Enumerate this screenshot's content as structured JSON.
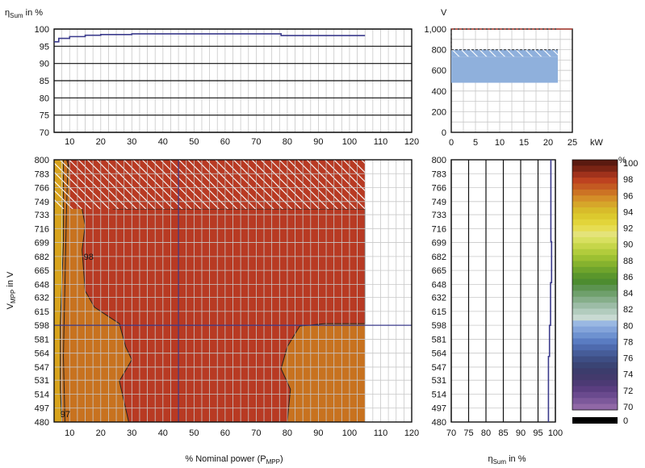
{
  "chart_data": [
    {
      "id": "top-efficiency",
      "type": "line",
      "ylabel": {
        "main": "η",
        "sub": "Sum",
        "rest": " in %"
      },
      "xlim": [
        5,
        120
      ],
      "ylim": [
        70,
        100
      ],
      "xticks": [
        10,
        20,
        30,
        40,
        50,
        60,
        70,
        80,
        90,
        100,
        110,
        120
      ],
      "yticks": [
        70,
        75,
        80,
        85,
        90,
        95,
        100
      ],
      "grid": true,
      "series": [
        {
          "color": "#3a3a8c",
          "x": [
            5,
            6.5,
            6.5,
            10,
            10,
            15,
            15,
            20,
            20,
            30,
            30,
            78,
            78,
            105
          ],
          "y": [
            96.3,
            96.3,
            97.3,
            97.3,
            97.8,
            97.8,
            98.2,
            98.2,
            98.4,
            98.4,
            98.6,
            98.6,
            98.1,
            98.1
          ]
        }
      ]
    },
    {
      "id": "voltage-power",
      "type": "bar",
      "ylabel": "V",
      "xlabel_unit": "kW",
      "xlim": [
        0,
        25
      ],
      "ylim": [
        0,
        1000
      ],
      "xticks": [
        0,
        5,
        10,
        15,
        20,
        25
      ],
      "yticks": [
        0,
        200,
        400,
        600,
        800,
        1000
      ],
      "ytick_labels": [
        "0",
        "200",
        "400",
        "600",
        "800",
        "1,000"
      ],
      "operating_range": {
        "xmin": 0,
        "xmax": 22,
        "vmin": 480,
        "vmax": 733,
        "color": "#8fb0dc"
      },
      "hatched_range": {
        "vmin": 733,
        "vmax": 800
      },
      "dashed_range": {
        "vmin": 800,
        "vmax": 1000
      },
      "max_voltage": 1000,
      "max_voltage_color": "#c0392b"
    },
    {
      "id": "efficiency-map",
      "type": "heatmap",
      "xlabel": {
        "main": "% Nominal power (P",
        "sub": "MPP",
        "rest": ")"
      },
      "ylabel": {
        "main": "V",
        "sub": "MPP",
        "rest": " in V"
      },
      "xlim": [
        5,
        120
      ],
      "xticks": [
        10,
        20,
        30,
        40,
        50,
        60,
        70,
        80,
        90,
        100,
        110,
        120
      ],
      "ylim": [
        480,
        800
      ],
      "yticks": [
        480,
        497,
        514,
        531,
        547,
        564,
        581,
        598,
        615,
        632,
        648,
        665,
        682,
        699,
        716,
        733,
        749,
        766,
        783,
        800
      ],
      "data_xmax": 105,
      "hatched_above_v": 740,
      "cursor": {
        "x": 45,
        "v": 598,
        "color": "#3a3a8c"
      },
      "contour_labels": [
        {
          "text": "98",
          "x": 14.5,
          "v": 682
        },
        {
          "text": "97",
          "x": 7,
          "v": 490
        }
      ],
      "regions": [
        {
          "level": "97",
          "color": "#c8721f"
        },
        {
          "level": "98",
          "color": "#b83a23"
        },
        {
          "level": "low",
          "color": "#d8a31c"
        }
      ]
    },
    {
      "id": "right-efficiency",
      "type": "line",
      "xlabel": {
        "main": "η",
        "sub": "Sum",
        "rest": " in %"
      },
      "xlim": [
        70,
        100
      ],
      "xticks": [
        70,
        75,
        80,
        85,
        90,
        95,
        100
      ],
      "ylim": [
        480,
        800
      ],
      "grid": true,
      "series": [
        {
          "color": "#3a3a8c",
          "x": [
            98,
            98,
            98.3,
            98.3,
            98.6,
            98.6,
            98.9,
            98.9,
            98.7,
            98.7
          ],
          "y": [
            480,
            560,
            560,
            598,
            598,
            650,
            650,
            700,
            700,
            800
          ]
        }
      ]
    },
    {
      "id": "color-legend",
      "type": "legend",
      "unit": "%",
      "labels": [
        "100",
        "98",
        "96",
        "94",
        "92",
        "90",
        "88",
        "86",
        "84",
        "82",
        "80",
        "78",
        "76",
        "74",
        "72",
        "70",
        "0"
      ],
      "colors": [
        "#5a1a10",
        "#7a2414",
        "#a0321c",
        "#bd4220",
        "#c45a22",
        "#cc7324",
        "#d48e28",
        "#d6a62a",
        "#d8bb2a",
        "#dcc92e",
        "#e2d43a",
        "#e6dd52",
        "#e4e37a",
        "#d8e060",
        "#c6d64a",
        "#b2cc3c",
        "#9cc032",
        "#86b22e",
        "#6fa42c",
        "#5a962c",
        "#4d8c30",
        "#5c9450",
        "#6fa06c",
        "#86ae8a",
        "#9cbca6",
        "#b2ccbe",
        "#c8dad2",
        "#9ab8e2",
        "#84a4da",
        "#6e92d0",
        "#5a7cc2",
        "#4e6aae",
        "#465c98",
        "#3e4e84",
        "#3a4474",
        "#3c3c6c",
        "#433a6c",
        "#4c3a74",
        "#5a3e80",
        "#6a4a8e",
        "#7c589a",
        "#9068a6"
      ],
      "zero_color": "#000000"
    }
  ]
}
